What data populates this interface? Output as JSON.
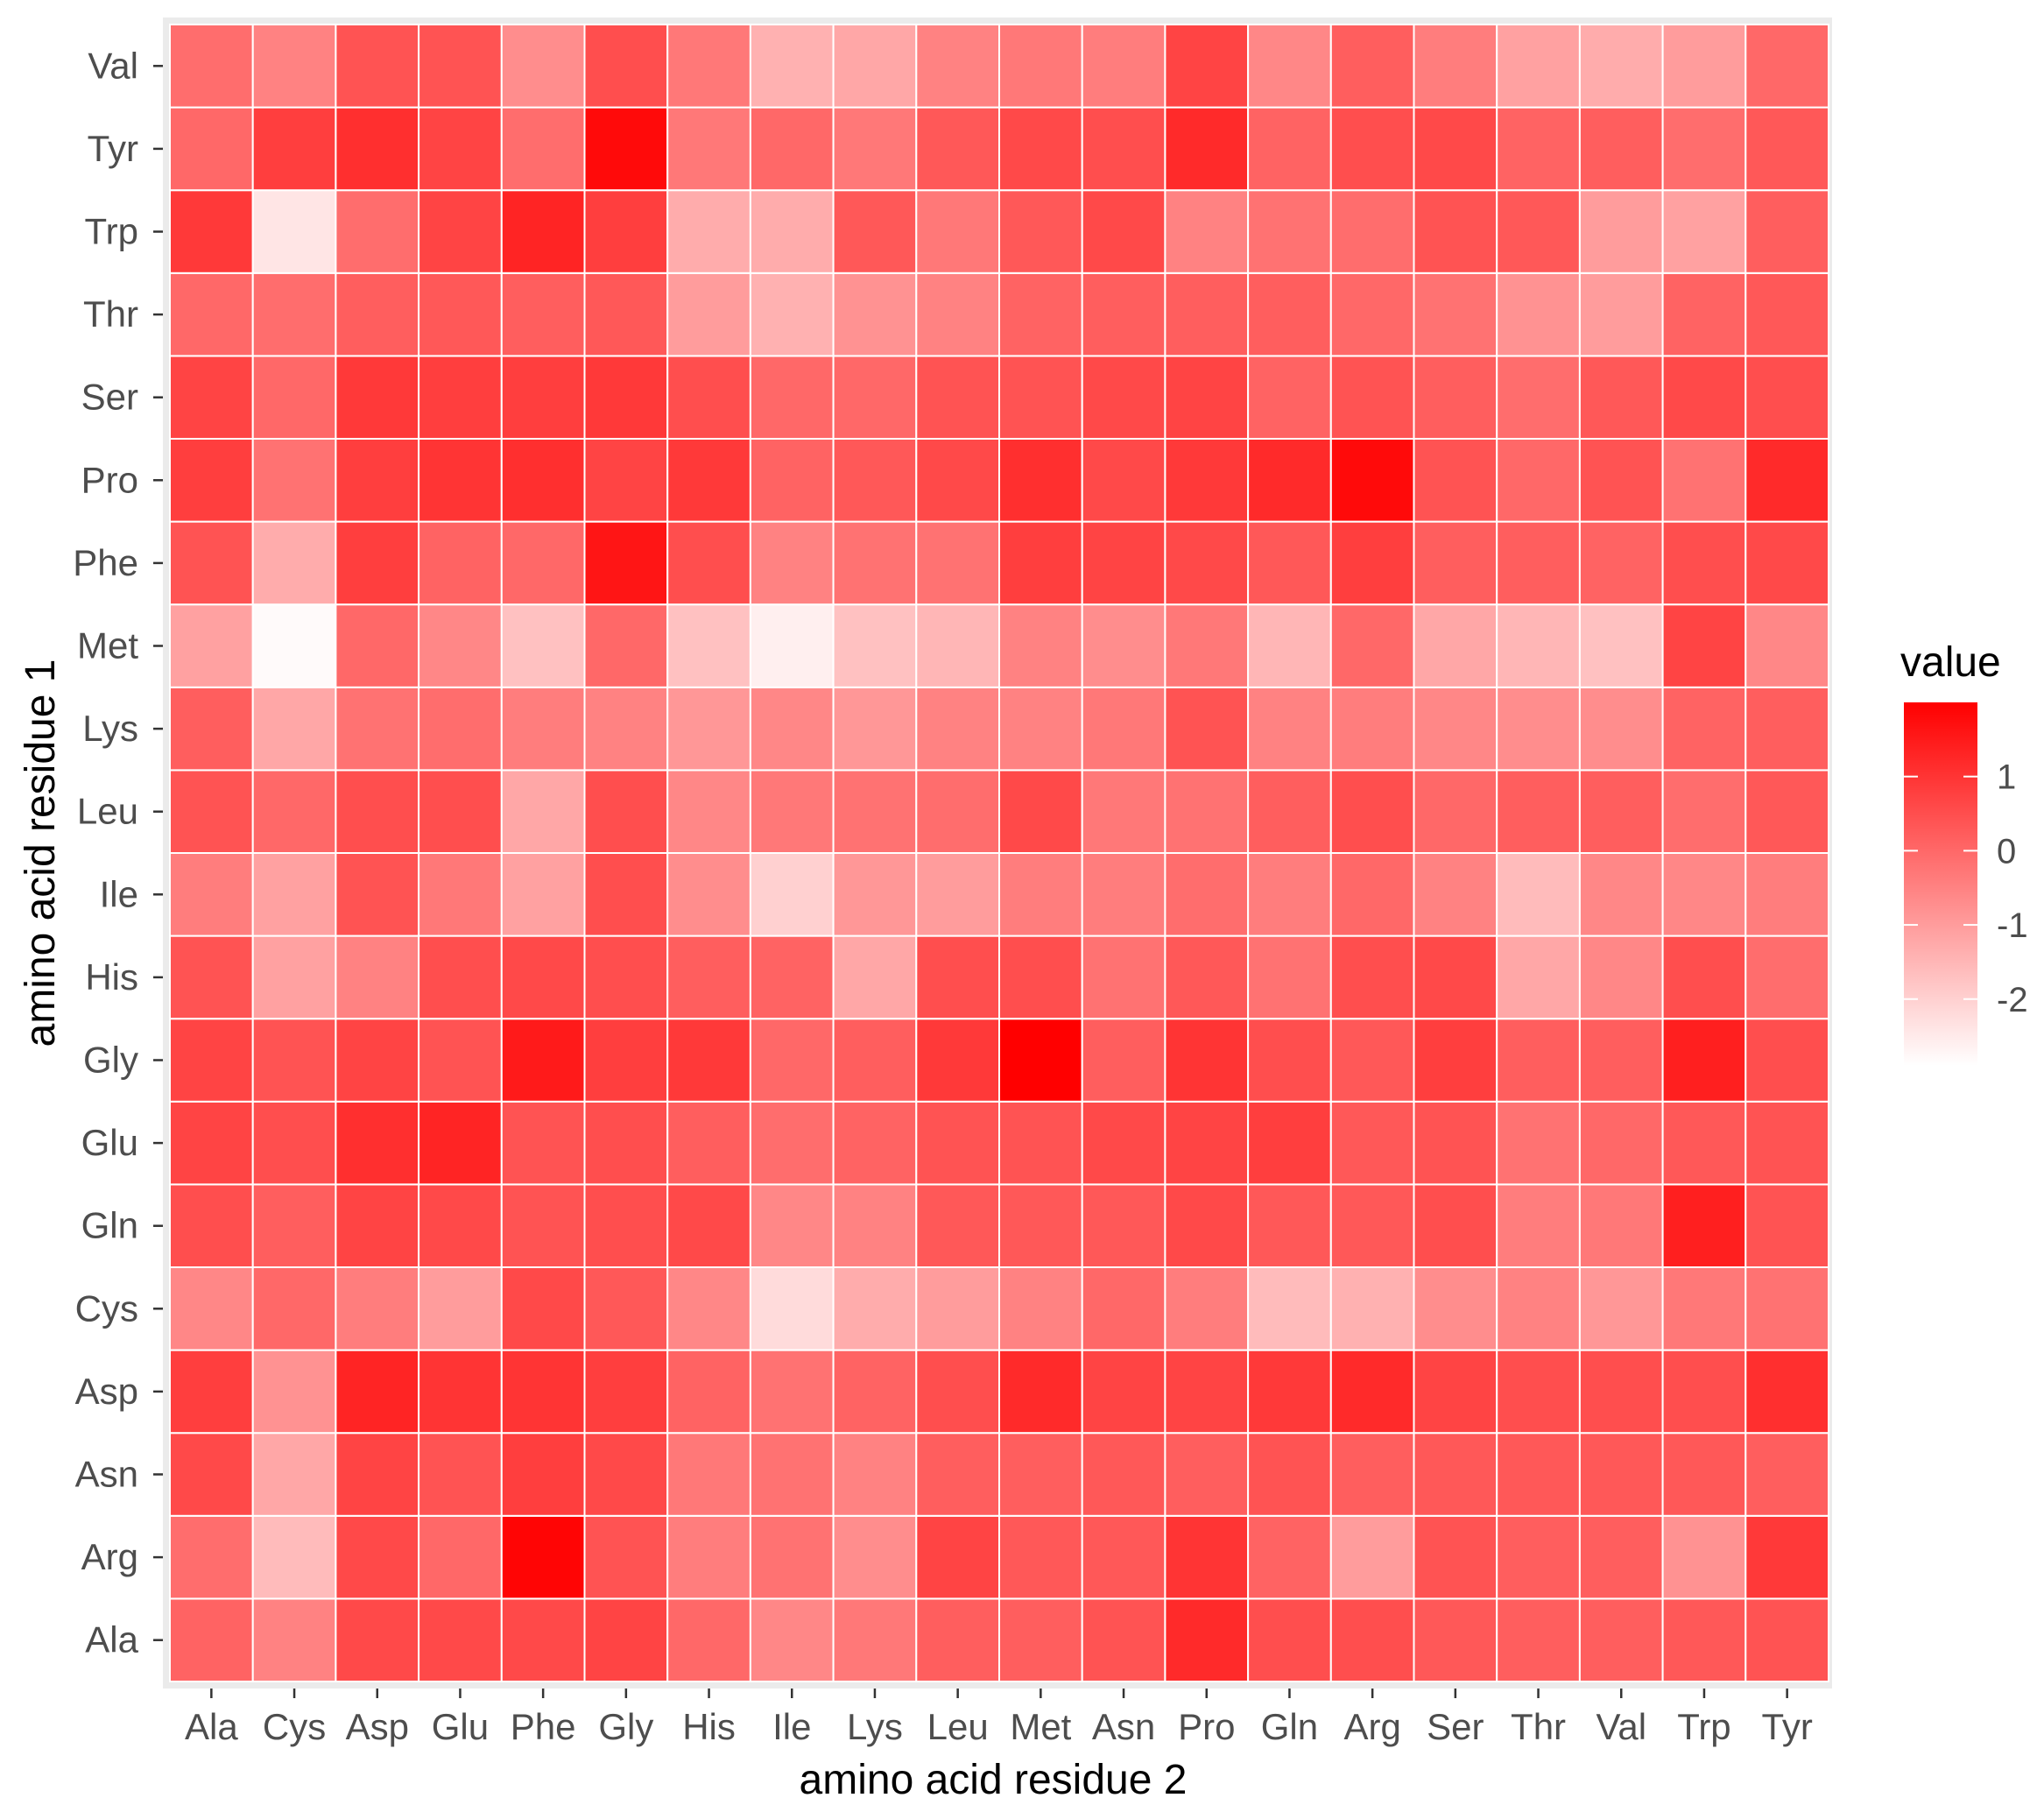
{
  "chart_data": {
    "type": "heatmap",
    "xlabel": "amino acid residue 2",
    "ylabel": "amino acid residue 1",
    "x_categories": [
      "Ala",
      "Cys",
      "Asp",
      "Glu",
      "Phe",
      "Gly",
      "His",
      "Ile",
      "Lys",
      "Leu",
      "Met",
      "Asn",
      "Pro",
      "Gln",
      "Arg",
      "Ser",
      "Thr",
      "Val",
      "Trp",
      "Tyr"
    ],
    "y_categories": [
      "Ala",
      "Arg",
      "Asn",
      "Asp",
      "Cys",
      "Gln",
      "Glu",
      "Gly",
      "His",
      "Ile",
      "Leu",
      "Lys",
      "Met",
      "Phe",
      "Pro",
      "Ser",
      "Thr",
      "Trp",
      "Tyr",
      "Val"
    ],
    "values": [
      [
        0.1,
        -0.5,
        0.6,
        0.6,
        0.6,
        0.7,
        0.0,
        -0.6,
        -0.3,
        0.2,
        0.2,
        0.4,
        1.2,
        0.5,
        0.5,
        0.3,
        0.2,
        0.2,
        0.3,
        0.4
      ],
      [
        -0.1,
        -1.6,
        0.6,
        0.0,
        1.9,
        0.4,
        -0.4,
        -0.2,
        -0.7,
        0.7,
        0.3,
        0.3,
        1.0,
        0.1,
        -1.0,
        0.4,
        0.2,
        0.2,
        -0.8,
        0.9
      ],
      [
        0.6,
        -1.2,
        0.7,
        0.4,
        0.8,
        0.6,
        -0.3,
        -0.2,
        -0.5,
        0.2,
        0.2,
        0.3,
        0.2,
        0.4,
        0.2,
        0.3,
        0.3,
        0.3,
        0.3,
        0.2
      ],
      [
        0.8,
        -0.8,
        1.3,
        1.0,
        1.0,
        0.8,
        0.1,
        -0.2,
        0.1,
        0.5,
        1.2,
        0.7,
        0.7,
        0.9,
        1.2,
        0.7,
        0.5,
        0.5,
        0.5,
        1.1
      ],
      [
        -0.6,
        0.0,
        -0.4,
        -1.0,
        0.6,
        0.3,
        -0.6,
        -2.2,
        -1.3,
        -1.0,
        -0.5,
        0.0,
        -0.4,
        -1.6,
        -1.4,
        -0.7,
        -0.5,
        -0.9,
        -0.3,
        -0.2
      ],
      [
        0.5,
        0.2,
        0.7,
        0.6,
        0.4,
        0.5,
        0.6,
        -0.6,
        -0.5,
        0.3,
        0.3,
        0.3,
        0.6,
        0.3,
        0.3,
        0.5,
        -0.4,
        -0.3,
        1.4,
        0.4
      ],
      [
        0.7,
        0.5,
        1.1,
        1.3,
        0.4,
        0.5,
        0.2,
        -0.1,
        0.1,
        0.4,
        0.4,
        0.6,
        0.7,
        0.8,
        0.3,
        0.4,
        -0.2,
        0.0,
        0.3,
        0.4
      ],
      [
        0.7,
        0.4,
        0.7,
        0.4,
        1.5,
        0.8,
        0.9,
        0.0,
        0.2,
        0.9,
        2.0,
        0.2,
        1.0,
        0.5,
        0.3,
        0.8,
        0.2,
        0.2,
        1.4,
        0.5
      ],
      [
        0.4,
        -1.1,
        -0.5,
        0.5,
        0.6,
        0.5,
        0.2,
        0.1,
        -1.2,
        0.5,
        0.5,
        -0.2,
        0.3,
        -0.2,
        0.5,
        0.6,
        -1.2,
        -0.6,
        0.5,
        -0.1
      ],
      [
        -0.4,
        -1.1,
        0.4,
        -0.3,
        -1.1,
        0.5,
        -0.7,
        -2.0,
        -0.9,
        -1.0,
        -0.4,
        -0.4,
        -0.1,
        -0.4,
        0.0,
        -0.5,
        -1.6,
        -0.6,
        -0.6,
        -0.4
      ],
      [
        0.4,
        0.0,
        0.5,
        0.5,
        -1.2,
        0.5,
        -0.6,
        -0.3,
        -0.2,
        -0.1,
        0.6,
        -0.3,
        -0.2,
        0.2,
        0.5,
        0.0,
        0.2,
        0.2,
        -0.1,
        0.3
      ],
      [
        0.2,
        -1.2,
        -0.2,
        -0.1,
        -0.4,
        -0.5,
        -0.9,
        -0.6,
        -0.9,
        -0.5,
        -0.5,
        -0.3,
        0.4,
        -0.5,
        -0.4,
        -0.6,
        -0.7,
        -0.7,
        0.1,
        0.2
      ],
      [
        -1.1,
        -2.8,
        0.0,
        -0.6,
        -1.7,
        0.0,
        -1.7,
        -2.6,
        -1.7,
        -1.5,
        -0.5,
        -0.7,
        -0.3,
        -1.5,
        0.0,
        -1.2,
        -1.5,
        -1.7,
        0.7,
        -0.6
      ],
      [
        0.4,
        -1.3,
        0.8,
        0.1,
        0.0,
        1.6,
        0.5,
        -0.5,
        -0.2,
        -0.2,
        0.8,
        0.7,
        0.6,
        0.3,
        0.8,
        0.2,
        0.2,
        0.1,
        0.5,
        0.6
      ],
      [
        0.8,
        -0.2,
        0.8,
        1.0,
        1.1,
        0.7,
        0.9,
        0.1,
        0.3,
        0.6,
        1.1,
        0.6,
        0.9,
        1.2,
        1.8,
        0.4,
        0.0,
        0.4,
        -0.2,
        1.2
      ],
      [
        0.7,
        0.0,
        0.9,
        0.8,
        0.8,
        0.9,
        0.5,
        0.0,
        0.0,
        0.4,
        0.4,
        0.6,
        0.7,
        0.1,
        0.4,
        0.2,
        -0.1,
        0.3,
        0.6,
        0.5
      ],
      [
        0.0,
        -0.1,
        0.2,
        0.3,
        0.2,
        0.3,
        -1.0,
        -1.4,
        -0.8,
        -0.5,
        0.1,
        0.2,
        0.2,
        0.2,
        0.0,
        -0.2,
        -0.8,
        -1.0,
        0.1,
        0.3
      ],
      [
        0.9,
        -2.4,
        -0.1,
        0.7,
        1.3,
        0.8,
        -1.3,
        -1.3,
        0.3,
        -0.3,
        0.3,
        0.6,
        -0.5,
        -0.2,
        -0.1,
        0.4,
        0.3,
        -1.0,
        -1.1,
        0.2
      ],
      [
        0.0,
        0.8,
        1.1,
        0.7,
        -0.1,
        1.8,
        -0.3,
        0.0,
        -0.3,
        0.3,
        0.6,
        0.5,
        1.2,
        0.1,
        0.5,
        0.6,
        0.1,
        0.2,
        -0.1,
        0.3
      ],
      [
        -0.1,
        -0.5,
        0.4,
        0.4,
        -0.7,
        0.5,
        -0.3,
        -1.4,
        -1.2,
        -0.5,
        -0.3,
        -0.4,
        0.7,
        -0.6,
        0.2,
        -0.4,
        -1.1,
        -1.3,
        -1.0,
        0.0
      ]
    ],
    "color_scale": {
      "low": "#ffffff",
      "high": "#ff0000",
      "min": -2.9,
      "max": 2.0
    },
    "legend": {
      "title": "value",
      "ticks": [
        1,
        0,
        -1,
        -2
      ],
      "position": "right"
    },
    "grid": true
  }
}
